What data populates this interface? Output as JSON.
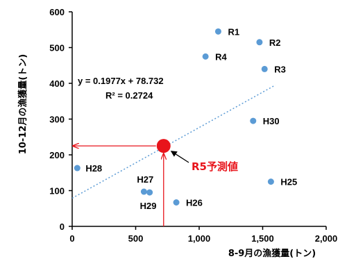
{
  "chart_data": {
    "type": "scatter",
    "xlabel": "8-9月の漁獲量(トン)",
    "ylabel": "10-12月の漁獲量(トン)",
    "xlim": [
      0,
      2000
    ],
    "ylim": [
      0,
      600
    ],
    "x_ticks": [
      0,
      500,
      1000,
      1500,
      2000
    ],
    "x_tick_labels": [
      "0",
      "500",
      "1,000",
      "1,500",
      "2,000"
    ],
    "y_ticks": [
      0,
      100,
      200,
      300,
      400,
      500,
      600
    ],
    "y_tick_labels": [
      "0",
      "100",
      "200",
      "300",
      "400",
      "500",
      "600"
    ],
    "grid": false,
    "legend": "none",
    "points": [
      {
        "label": "R1",
        "x": 1150,
        "y": 545
      },
      {
        "label": "R2",
        "x": 1475,
        "y": 515
      },
      {
        "label": "R4",
        "x": 1050,
        "y": 475
      },
      {
        "label": "R3",
        "x": 1515,
        "y": 440
      },
      {
        "label": "H30",
        "x": 1425,
        "y": 295
      },
      {
        "label": "H28",
        "x": 40,
        "y": 163
      },
      {
        "label": "H25",
        "x": 1565,
        "y": 125
      },
      {
        "label": "H27",
        "x": 565,
        "y": 97
      },
      {
        "label": "H29",
        "x": 610,
        "y": 95
      },
      {
        "label": "H26",
        "x": 820,
        "y": 67
      }
    ],
    "trendline": {
      "slope": 0.1977,
      "intercept": 78.732,
      "x_range": [
        0,
        1600
      ],
      "equation": "y = 0.1977x + 78.732",
      "r_squared": "R² = 0.2724"
    },
    "prediction": {
      "label": "R5予測値",
      "x": 720,
      "y": 225
    },
    "colors": {
      "points": "#5b9bd5",
      "trendline": "#5b9bd5",
      "prediction": "#e8141b"
    }
  }
}
